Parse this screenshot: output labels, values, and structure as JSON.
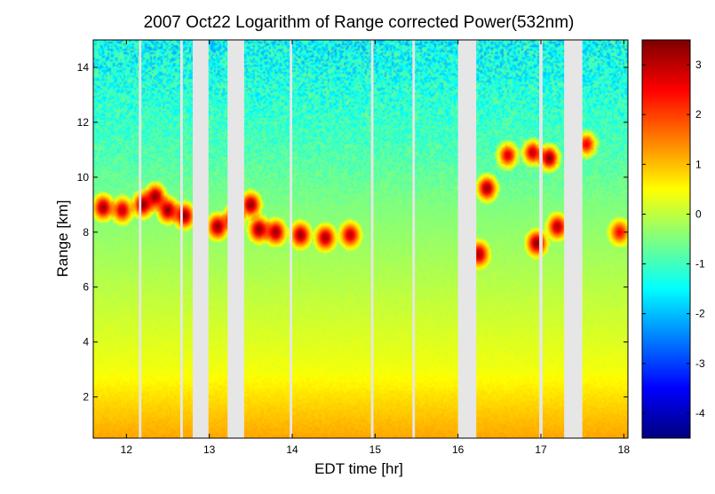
{
  "chart_data": {
    "type": "heatmap",
    "title": "2007 Oct22  Logarithm of Range corrected Power(532nm)",
    "xlabel": "EDT time [hr]",
    "ylabel": "Range [km]",
    "xlim": [
      11.6,
      18.05
    ],
    "ylim": [
      0.5,
      15
    ],
    "x_ticks": [
      "12",
      "13",
      "14",
      "15",
      "16",
      "17",
      "18"
    ],
    "y_ticks": [
      "2",
      "4",
      "6",
      "8",
      "10",
      "12",
      "14"
    ],
    "colorbar": {
      "range": [
        -4.5,
        3.5
      ],
      "ticks": [
        "3",
        "2",
        "1",
        "0",
        "-1",
        "-2",
        "-3",
        "-4"
      ],
      "colormap": "jet"
    },
    "background_profile": [
      {
        "range_km": 0.5,
        "value": 1.2
      },
      {
        "range_km": 1.5,
        "value": 0.9
      },
      {
        "range_km": 3,
        "value": 0.4
      },
      {
        "range_km": 5,
        "value": 0.1
      },
      {
        "range_km": 7,
        "value": -0.2
      },
      {
        "range_km": 9,
        "value": -0.5
      },
      {
        "range_km": 11,
        "value": -0.9
      },
      {
        "range_km": 13,
        "value": -1.2
      },
      {
        "range_km": 15,
        "value": -1.5
      }
    ],
    "clouds": [
      {
        "x": 11.72,
        "y": 8.9,
        "value": 3.3
      },
      {
        "x": 11.95,
        "y": 8.8,
        "value": 3.0
      },
      {
        "x": 12.2,
        "y": 9.0,
        "value": 3.4
      },
      {
        "x": 12.35,
        "y": 9.3,
        "value": 3.4
      },
      {
        "x": 12.5,
        "y": 8.8,
        "value": 3.4
      },
      {
        "x": 12.7,
        "y": 8.6,
        "value": 3.4
      },
      {
        "x": 13.1,
        "y": 8.2,
        "value": 3.4
      },
      {
        "x": 13.3,
        "y": 8.5,
        "value": 3.4
      },
      {
        "x": 13.5,
        "y": 9.0,
        "value": 3.4
      },
      {
        "x": 13.6,
        "y": 8.1,
        "value": 3.4
      },
      {
        "x": 13.8,
        "y": 8.0,
        "value": 3.3
      },
      {
        "x": 14.1,
        "y": 7.9,
        "value": 3.3
      },
      {
        "x": 14.4,
        "y": 7.8,
        "value": 3.2
      },
      {
        "x": 14.7,
        "y": 7.9,
        "value": 3.0
      },
      {
        "x": 16.25,
        "y": 7.2,
        "value": 3.2
      },
      {
        "x": 16.35,
        "y": 9.6,
        "value": 3.3
      },
      {
        "x": 16.6,
        "y": 10.8,
        "value": 2.8
      },
      {
        "x": 16.9,
        "y": 10.9,
        "value": 3.0
      },
      {
        "x": 17.1,
        "y": 10.7,
        "value": 3.4
      },
      {
        "x": 16.95,
        "y": 7.6,
        "value": 3.4
      },
      {
        "x": 17.2,
        "y": 8.2,
        "value": 3.1
      },
      {
        "x": 17.55,
        "y": 11.2,
        "value": 2.6
      },
      {
        "x": 17.95,
        "y": 8.0,
        "value": 2.5
      }
    ],
    "data_gaps": [
      {
        "t0": 12.15,
        "t1": 12.18
      },
      {
        "t0": 12.65,
        "t1": 12.68
      },
      {
        "t0": 12.8,
        "t1": 12.99
      },
      {
        "t0": 13.22,
        "t1": 13.42
      },
      {
        "t0": 13.97,
        "t1": 14.0
      },
      {
        "t0": 14.95,
        "t1": 14.98
      },
      {
        "t0": 15.45,
        "t1": 15.48
      },
      {
        "t0": 16.0,
        "t1": 16.22
      },
      {
        "t0": 16.98,
        "t1": 17.02
      },
      {
        "t0": 17.28,
        "t1": 17.5
      }
    ]
  }
}
